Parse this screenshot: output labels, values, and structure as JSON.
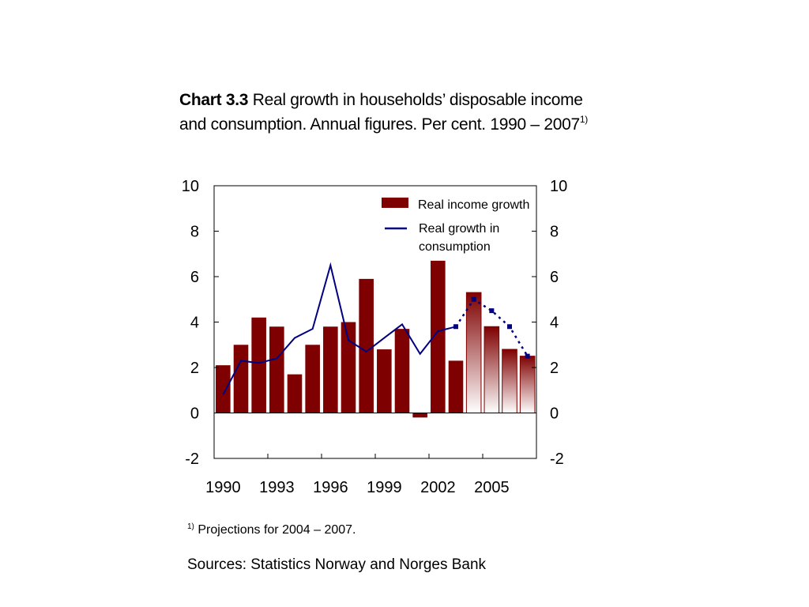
{
  "title": {
    "bold": "Chart 3.3",
    "rest": " Real growth in households’ disposable income and consumption. Annual figures. Per cent. 1990 – 2007",
    "sup": "1)"
  },
  "footnote": {
    "sup": "1)",
    "text": "Projections for 2004 – 2007."
  },
  "sources": "Sources: Statistics Norway and Norges Bank",
  "chart_data": {
    "type": "bar",
    "x": [
      1990,
      1991,
      1992,
      1993,
      1994,
      1995,
      1996,
      1997,
      1998,
      1999,
      2000,
      2001,
      2002,
      2003,
      2004,
      2005,
      2006,
      2007
    ],
    "x_tick_labels": [
      "1990",
      "1993",
      "1996",
      "1999",
      "2002",
      "2005"
    ],
    "ylim": [
      -2,
      10
    ],
    "y_ticks": [
      -2,
      0,
      2,
      4,
      6,
      8,
      10
    ],
    "y_axes": "left and right, identical scale",
    "grid": false,
    "legend_position": "top-right",
    "projection_start": 2004,
    "series": [
      {
        "name": "Real income growth",
        "kind": "bar",
        "color": "#7f0000",
        "values": [
          2.1,
          3.0,
          4.2,
          3.8,
          1.7,
          3.0,
          3.8,
          4.0,
          5.9,
          2.8,
          3.7,
          -0.2,
          6.7,
          2.3,
          5.3,
          3.8,
          2.8,
          2.5
        ]
      },
      {
        "name": "Real growth in consumption",
        "kind": "line",
        "color": "#000080",
        "values": [
          0.8,
          2.3,
          2.2,
          2.4,
          3.3,
          3.7,
          6.5,
          3.2,
          2.7,
          3.3,
          3.9,
          2.6,
          3.6,
          3.8,
          5.0,
          4.5,
          3.8,
          2.5
        ]
      }
    ]
  }
}
